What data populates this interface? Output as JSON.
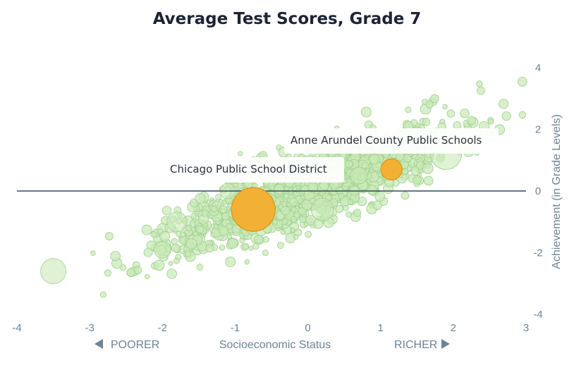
{
  "chart_data": {
    "type": "scatter",
    "title": "Average Test Scores, Grade 7",
    "xlabel": "Socioeconomic Status",
    "ylabel": "Achievement (in Grade Levels)",
    "xlim": [
      -4,
      3
    ],
    "ylim": [
      -4,
      4
    ],
    "x_ticks": [
      -4,
      -3,
      -2,
      -1,
      0,
      1,
      2,
      3
    ],
    "y_ticks": [
      4,
      2,
      0,
      -2,
      -4
    ],
    "x_tick_labels": [
      "-4",
      "-3",
      "-2",
      "-1",
      "0",
      "1",
      "2",
      "3"
    ],
    "y_tick_labels": [
      "4",
      "2",
      "0",
      "-2",
      "-4"
    ],
    "poorer_label": "POORER",
    "richer_label": "RICHER",
    "reference_line_y": 0,
    "grid": false,
    "colors": {
      "bubble_fill": "#c9eab8",
      "bubble_stroke": "#9fcf8e",
      "highlight_fill": "#f2b134",
      "highlight_stroke": "#d9961a",
      "reference_line": "#2e4a66",
      "axis_text": "#6d8396"
    },
    "background_bubbles": {
      "description_shape": "cloud of many school districts along a positive trend",
      "trend_slope": 0.87,
      "trend_intercept": 0.1,
      "spread_sd": 0.55,
      "count": 1500
    },
    "large_bubbles": [
      {
        "x": -3.5,
        "y": -2.6,
        "size": 18
      },
      {
        "x": 1.9,
        "y": 1.2,
        "size": 22
      },
      {
        "x": -1.8,
        "y": -1.0,
        "size": 14
      },
      {
        "x": 0.2,
        "y": -0.6,
        "size": 16
      },
      {
        "x": -2.0,
        "y": -1.9,
        "size": 12
      },
      {
        "x": 1.5,
        "y": 1.8,
        "size": 12
      },
      {
        "x": -1.1,
        "y": 0.0,
        "size": 11
      },
      {
        "x": 0.7,
        "y": 0.5,
        "size": 12
      }
    ],
    "highlights": [
      {
        "name": "Chicago Public School District",
        "x": -0.75,
        "y": -0.6,
        "size": 31
      },
      {
        "name": "Anne Arundel County Public Schools",
        "x": 1.15,
        "y": 0.7,
        "size": 15
      }
    ]
  }
}
